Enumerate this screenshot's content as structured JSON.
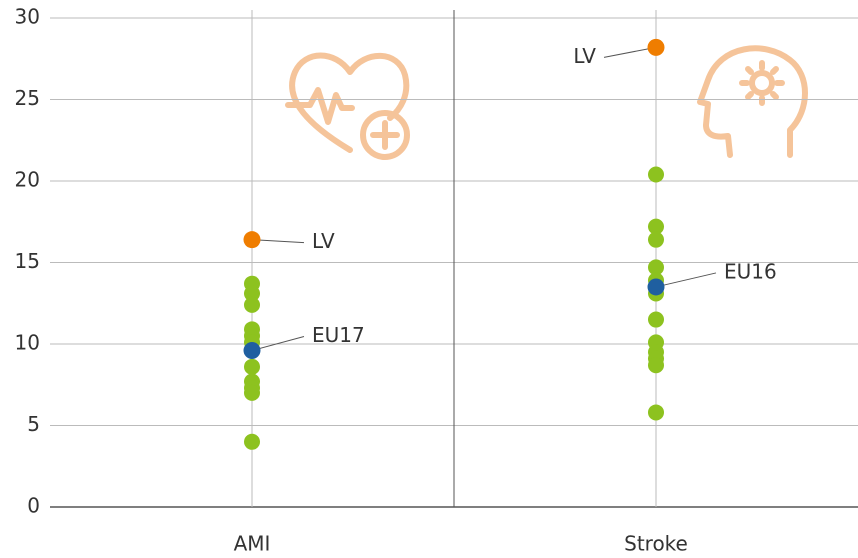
{
  "chart_data": {
    "type": "strip",
    "categories": [
      "AMI",
      "Stroke"
    ],
    "ylim": [
      0,
      30
    ],
    "yticks": [
      0,
      5,
      10,
      15,
      20,
      25,
      30
    ],
    "grid": true,
    "color": "#8dc21f",
    "values": [
      [
        13.7,
        13.1,
        12.4,
        10.9,
        10.5,
        10.1,
        8.6,
        7.7,
        7.3,
        7.0,
        4.0
      ],
      [
        20.4,
        17.2,
        16.4,
        14.7,
        13.9,
        13.1,
        11.5,
        10.1,
        9.5,
        9.1,
        8.7,
        5.8
      ]
    ],
    "highlights": [
      [
        {
          "label": "LV",
          "value": 16.4,
          "color": "#ef7d00"
        },
        {
          "label": "EU17",
          "value": 9.6,
          "color": "#1f5fa0"
        }
      ],
      [
        {
          "label": "LV",
          "value": 28.2,
          "color": "#ef7d00"
        },
        {
          "label": "EU16",
          "value": 13.5,
          "color": "#1f5fa0"
        }
      ]
    ]
  }
}
